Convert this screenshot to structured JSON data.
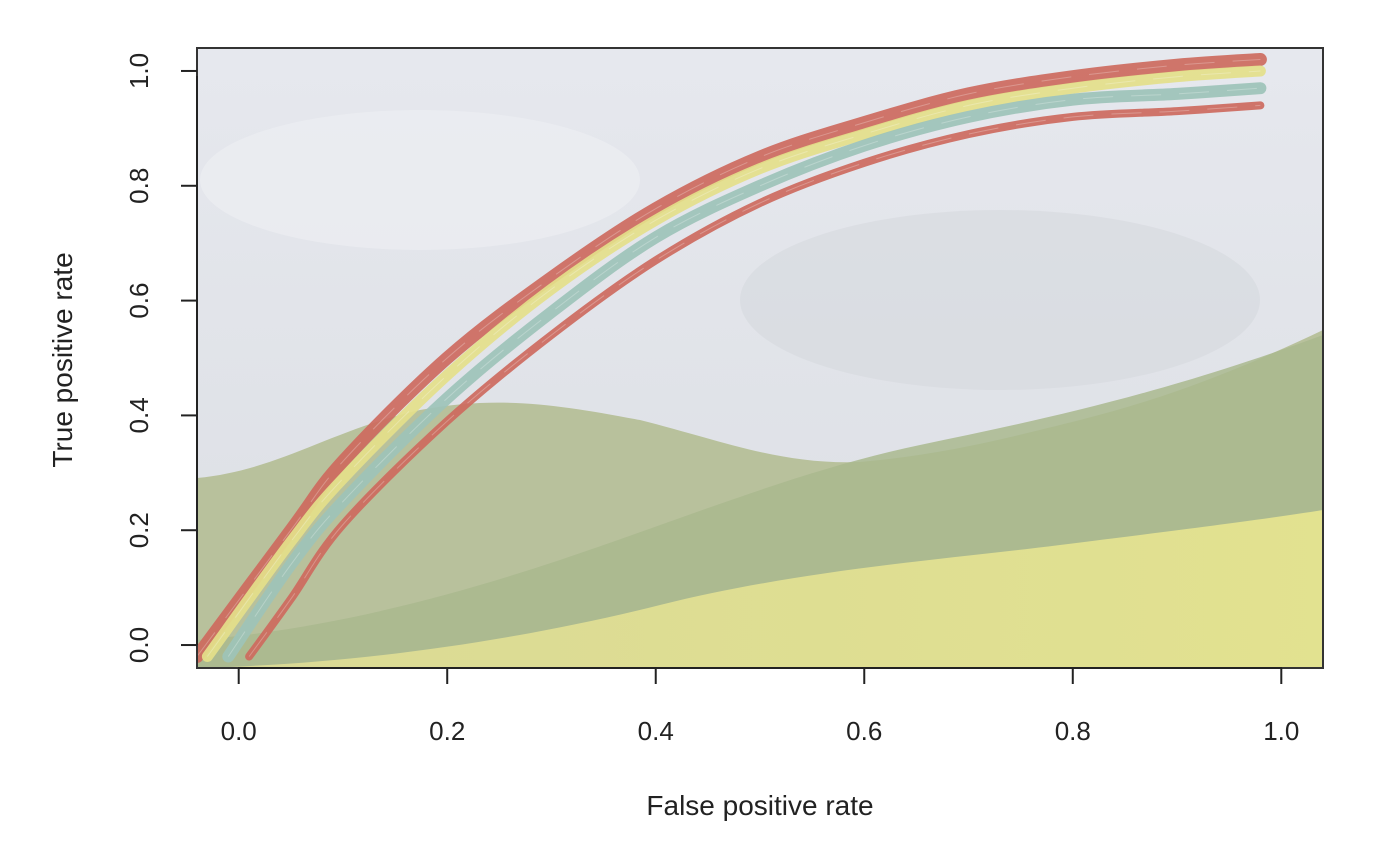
{
  "chart_data": {
    "type": "line",
    "xlabel": "False positive rate",
    "ylabel": "True positive rate",
    "xlim": [
      -0.04,
      1.04
    ],
    "ylim": [
      -0.04,
      1.04
    ],
    "xticks": [
      {
        "value": 0.0,
        "label": "0.0"
      },
      {
        "value": 0.2,
        "label": "0.2"
      },
      {
        "value": 0.4,
        "label": "0.4"
      },
      {
        "value": 0.6,
        "label": "0.6"
      },
      {
        "value": 0.8,
        "label": "0.8"
      },
      {
        "value": 1.0,
        "label": "1.0"
      }
    ],
    "yticks": [
      {
        "value": 0.0,
        "label": "0.0"
      },
      {
        "value": 0.2,
        "label": "0.2"
      },
      {
        "value": 0.4,
        "label": "0.4"
      },
      {
        "value": 0.6,
        "label": "0.6"
      },
      {
        "value": 0.8,
        "label": "0.8"
      },
      {
        "value": 1.0,
        "label": "1.0"
      }
    ],
    "grid": false,
    "background": "photograph of grassy hills under an overcast sky",
    "colors": {
      "outer": "#cd6a5e",
      "middle": "#e4df8a",
      "inner": "#9dc3b8",
      "sky": "#e2e4ea",
      "hill": "#b9c29a",
      "field": "#e6e394"
    },
    "series": [
      {
        "color": "#cd6a5e",
        "x": [
          -0.04,
          0.05,
          0.1,
          0.2,
          0.3,
          0.4,
          0.5,
          0.6,
          0.7,
          0.8,
          0.9,
          0.98
        ],
        "y": [
          -0.02,
          0.2,
          0.32,
          0.5,
          0.64,
          0.76,
          0.85,
          0.91,
          0.96,
          0.99,
          1.01,
          1.02
        ]
      },
      {
        "color": "#e4df8a",
        "x": [
          -0.03,
          0.05,
          0.1,
          0.2,
          0.3,
          0.4,
          0.5,
          0.6,
          0.7,
          0.8,
          0.9,
          0.98
        ],
        "y": [
          -0.02,
          0.18,
          0.29,
          0.47,
          0.62,
          0.74,
          0.83,
          0.89,
          0.94,
          0.97,
          0.99,
          1.0
        ]
      },
      {
        "color": "#9dc3b8",
        "x": [
          -0.01,
          0.05,
          0.1,
          0.2,
          0.3,
          0.4,
          0.5,
          0.6,
          0.7,
          0.8,
          0.9,
          0.98
        ],
        "y": [
          -0.02,
          0.14,
          0.25,
          0.43,
          0.58,
          0.71,
          0.8,
          0.87,
          0.92,
          0.95,
          0.96,
          0.97
        ]
      },
      {
        "color": "#cd6a5e",
        "x": [
          0.01,
          0.05,
          0.1,
          0.2,
          0.3,
          0.4,
          0.5,
          0.6,
          0.7,
          0.8,
          0.9,
          0.98
        ],
        "y": [
          -0.02,
          0.08,
          0.21,
          0.39,
          0.54,
          0.67,
          0.77,
          0.84,
          0.89,
          0.92,
          0.93,
          0.94
        ]
      }
    ]
  }
}
